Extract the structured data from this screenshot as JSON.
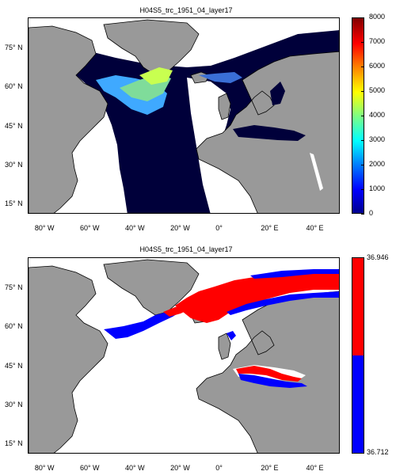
{
  "panels": [
    {
      "title": "H04S5_trc_1951_04_layer17",
      "colorbar": {
        "type": "continuous",
        "min": 0,
        "max": 8000,
        "ticks": [
          "0",
          "1000",
          "2000",
          "3000",
          "4000",
          "5000",
          "6000",
          "7000",
          "8000"
        ]
      }
    },
    {
      "title": "H04S5_trc_1951_04_layer17",
      "colorbar": {
        "type": "binary",
        "low_label": "36.712",
        "high_label": "36.946",
        "low_color": "#0000ff",
        "high_color": "#ff0000"
      }
    }
  ],
  "axes": {
    "xticks": [
      "80° W",
      "60° W",
      "40° W",
      "20° W",
      "0°",
      "20° E",
      "40° E"
    ],
    "yticks": [
      "75° N",
      "60° N",
      "45° N",
      "30° N",
      "15° N"
    ]
  },
  "colors": {
    "land": "#999999",
    "ocean_nodata": "#ffffff",
    "deep_navy": "#00003a",
    "cmap_low": "#00008f",
    "cmap_high": "#800000"
  },
  "chart_data": [
    {
      "type": "heatmap",
      "title": "H04S5_trc_1951_04_layer17",
      "xlim": [
        -88,
        50
      ],
      "ylim": [
        11,
        85
      ],
      "colorbar_range": [
        0,
        8000
      ],
      "colormap": "jet",
      "xticks": [
        -80,
        -60,
        -40,
        -20,
        0,
        20,
        40
      ],
      "yticks": [
        75,
        60,
        45,
        30,
        15
      ]
    },
    {
      "type": "heatmap",
      "title": "H04S5_trc_1951_04_layer17",
      "xlim": [
        -88,
        50
      ],
      "ylim": [
        11,
        85
      ],
      "colorbar_range": [
        36.712,
        36.946
      ],
      "colormap": "two-level blue/red",
      "xticks": [
        -80,
        -60,
        -40,
        -20,
        0,
        20,
        40
      ],
      "yticks": [
        75,
        60,
        45,
        30,
        15
      ]
    }
  ]
}
